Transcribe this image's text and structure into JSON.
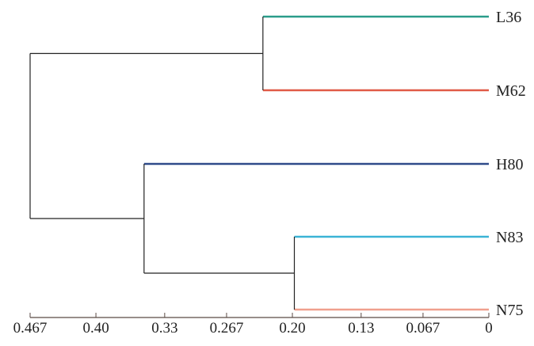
{
  "chart_data": {
    "type": "dendrogram",
    "orientation": "horizontal, leaves on right",
    "title": "",
    "xlabel": "",
    "ylabel": "",
    "xlim": [
      0.467,
      0
    ],
    "x_ticks": [
      0.467,
      0.4,
      0.33,
      0.267,
      0.2,
      0.13,
      0.067,
      0
    ],
    "x_tick_labels": [
      "0.467",
      "0.40",
      "0.33",
      "0.267",
      "0.20",
      "0.13",
      "0.067",
      "0"
    ],
    "leaves": [
      {
        "label": "L36",
        "color": "#2a9d8a"
      },
      {
        "label": "M62",
        "color": "#e05a47"
      },
      {
        "label": "H80",
        "color": "#2f4b8a"
      },
      {
        "label": "N83",
        "color": "#3bb3d6"
      },
      {
        "label": "N75",
        "color": "#f0a08e"
      }
    ],
    "merges": [
      {
        "children": [
          "L36",
          "M62"
        ],
        "height": 0.23
      },
      {
        "children": [
          "N83",
          "N75"
        ],
        "height": 0.198
      },
      {
        "children": [
          "H80",
          "N83+N75"
        ],
        "height": 0.351
      },
      {
        "children": [
          "L36+M62",
          "H80+N83+N75"
        ],
        "height": 0.467
      }
    ],
    "link_color": "#222222",
    "axis_color": "#5a4a44",
    "grid": false
  }
}
